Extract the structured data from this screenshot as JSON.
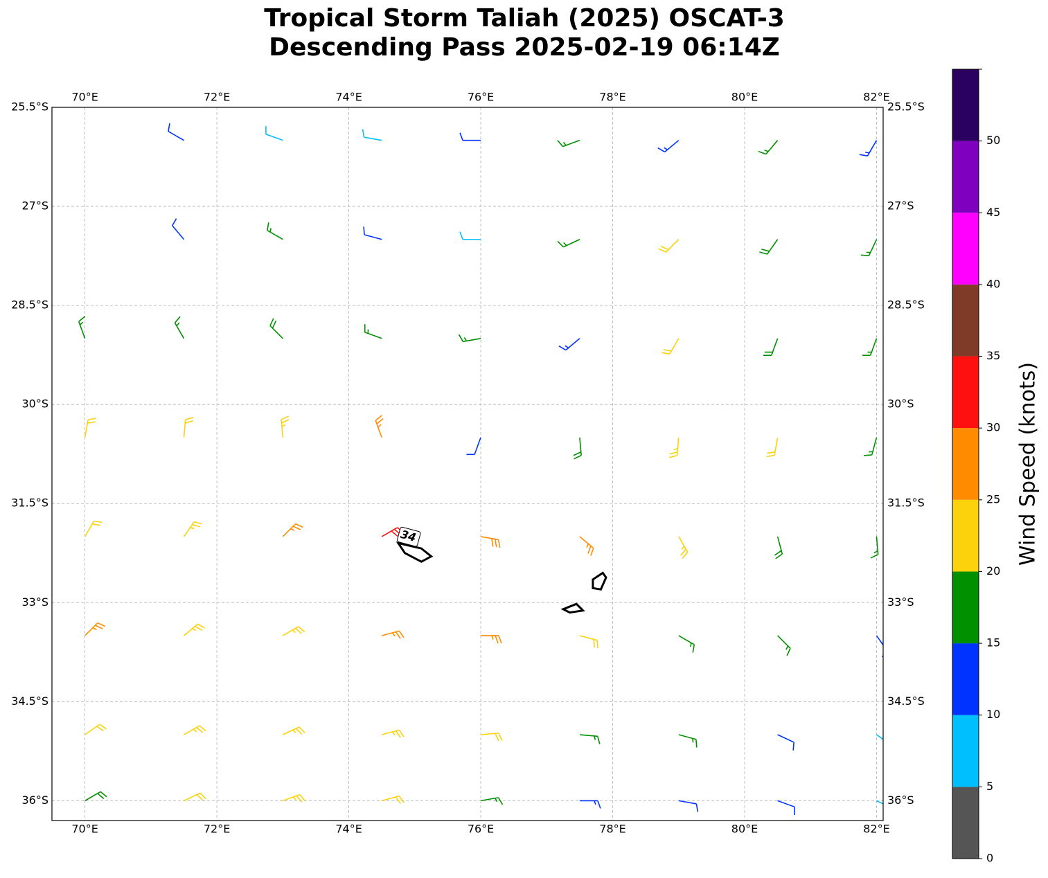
{
  "chart_data": {
    "type": "wind-barb-map",
    "title": [
      "Tropical Storm Taliah (2025) OSCAT-3",
      "Descending Pass 2025-02-19 06:14Z"
    ],
    "xlim": [
      69.5,
      82.1
    ],
    "ylim": [
      -36.3,
      -25.5
    ],
    "xticks": [
      {
        "value": 70,
        "label": "70°E"
      },
      {
        "value": 72,
        "label": "72°E"
      },
      {
        "value": 74,
        "label": "74°E"
      },
      {
        "value": 76,
        "label": "76°E"
      },
      {
        "value": 78,
        "label": "78°E"
      },
      {
        "value": 80,
        "label": "80°E"
      },
      {
        "value": 82,
        "label": "82°E"
      }
    ],
    "yticks": [
      {
        "value": -25.5,
        "label": "25.5°S"
      },
      {
        "value": -27,
        "label": "27°S"
      },
      {
        "value": -28.5,
        "label": "28.5°S"
      },
      {
        "value": -30,
        "label": "30°S"
      },
      {
        "value": -31.5,
        "label": "31.5°S"
      },
      {
        "value": -33,
        "label": "33°S"
      },
      {
        "value": -34.5,
        "label": "34.5°S"
      },
      {
        "value": -36,
        "label": "36°S"
      }
    ],
    "grid": true,
    "barbs": {
      "lons": [
        70,
        71.5,
        73,
        74.5,
        76,
        77.5,
        79,
        80.5,
        82
      ],
      "lats": [
        -26,
        -27.5,
        -29,
        -30.5,
        -32,
        -33.5,
        -35,
        -36
      ],
      "speed": [
        [
          null,
          12,
          8,
          8,
          10,
          15,
          14,
          16,
          13
        ],
        [
          null,
          12,
          16,
          12,
          9,
          15,
          21,
          18,
          16
        ],
        [
          16,
          17,
          19,
          17,
          17,
          13,
          21,
          18,
          17
        ],
        [
          22,
          20,
          23,
          26,
          12,
          18,
          23,
          21,
          17
        ],
        [
          22,
          24,
          27,
          32,
          28,
          26,
          23,
          19,
          16
        ],
        [
          26,
          24,
          24,
          26,
          27,
          22,
          17,
          15,
          12
        ],
        [
          22,
          24,
          24,
          23,
          21,
          17,
          15,
          12,
          9
        ],
        [
          18,
          22,
          23,
          22,
          17,
          13,
          11,
          10,
          8
        ]
      ],
      "direction": [
        [
          null,
          300,
          290,
          280,
          270,
          250,
          230,
          220,
          210
        ],
        [
          null,
          320,
          300,
          285,
          270,
          245,
          225,
          215,
          205
        ],
        [
          340,
          330,
          315,
          290,
          260,
          230,
          210,
          200,
          200
        ],
        [
          10,
          5,
          355,
          340,
          200,
          175,
          185,
          190,
          195
        ],
        [
          30,
          35,
          45,
          60,
          100,
          130,
          150,
          165,
          175
        ],
        [
          45,
          50,
          60,
          75,
          90,
          105,
          120,
          135,
          145
        ],
        [
          55,
          60,
          65,
          75,
          85,
          95,
          105,
          115,
          125
        ],
        [
          60,
          65,
          70,
          75,
          80,
          90,
          100,
          110,
          115
        ]
      ]
    },
    "contours": {
      "level": 34,
      "label": "34",
      "label_lon": 74.9,
      "label_lat": -32.0,
      "polygons": [
        [
          [
            74.75,
            -32.1
          ],
          [
            74.85,
            -32.25
          ],
          [
            75.1,
            -32.38
          ],
          [
            75.25,
            -32.3
          ],
          [
            75.1,
            -32.18
          ]
        ],
        [
          [
            77.7,
            -32.65
          ],
          [
            77.85,
            -32.55
          ],
          [
            77.9,
            -32.62
          ],
          [
            77.82,
            -32.8
          ],
          [
            77.7,
            -32.78
          ]
        ],
        [
          [
            77.25,
            -33.1
          ],
          [
            77.45,
            -33.02
          ],
          [
            77.55,
            -33.12
          ],
          [
            77.35,
            -33.15
          ]
        ]
      ]
    },
    "colorbar": {
      "label": "Wind Speed (knots)",
      "lim": [
        0,
        55
      ],
      "bounds": [
        0,
        5,
        10,
        15,
        20,
        25,
        30,
        35,
        40,
        45,
        50,
        55
      ],
      "colors": [
        "#555555",
        "#00bfff",
        "#0033ff",
        "#009000",
        "#fbd20c",
        "#ff8c00",
        "#ff1010",
        "#7f3a28",
        "#ff00ff",
        "#8000c0",
        "#2a0060"
      ],
      "ticks": [
        0,
        5,
        10,
        15,
        20,
        25,
        30,
        35,
        40,
        45,
        50
      ]
    }
  }
}
